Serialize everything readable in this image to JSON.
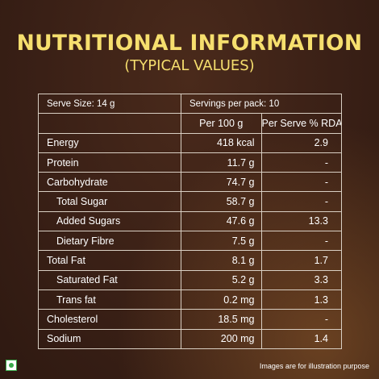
{
  "header": {
    "title": "NUTRITIONAL INFORMATION",
    "subtitle": "(TYPICAL VALUES)"
  },
  "table": {
    "serve_size": "Serve Size: 14 g",
    "servings_per_pack": "Servings per pack: 10",
    "columns": [
      "",
      "Per 100 g",
      "Per Serve % RDA"
    ],
    "rows": [
      {
        "name": "Energy",
        "per100": "418 kcal",
        "rda": "2.9"
      },
      {
        "name": "Protein",
        "per100": "11.7 g",
        "rda": "-"
      },
      {
        "name": "Carbohydrate",
        "per100": "74.7 g",
        "rda": "-"
      },
      {
        "name": "Total Sugar",
        "per100": "58.7 g",
        "rda": "-"
      },
      {
        "name": "Added Sugars",
        "per100": "47.6 g",
        "rda": "13.3"
      },
      {
        "name": "Dietary Fibre",
        "per100": "7.5 g",
        "rda": "-"
      },
      {
        "name": "Total Fat",
        "per100": "8.1 g",
        "rda": "1.7"
      },
      {
        "name": "Saturated Fat",
        "per100": "5.2 g",
        "rda": "3.3"
      },
      {
        "name": "Trans fat",
        "per100": "0.2 mg",
        "rda": "1.3"
      },
      {
        "name": "Cholesterol",
        "per100": "18.5 mg",
        "rda": "-"
      },
      {
        "name": "Sodium",
        "per100": "200 mg",
        "rda": "1.4"
      }
    ]
  },
  "footer": {
    "disclaimer": "Images are for illustration purpose",
    "veg_mark_icon": "veg-symbol-icon"
  },
  "colors": {
    "title": "#f6df6e",
    "veg_green": "#39a84a"
  }
}
